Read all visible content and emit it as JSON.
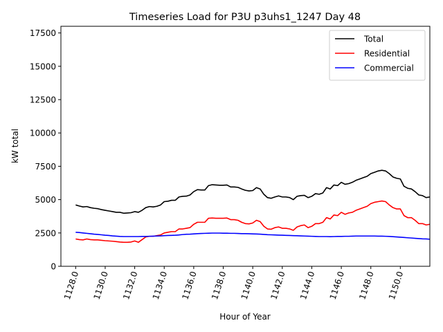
{
  "chart_data": {
    "type": "line",
    "title": "Timeseries Load for P3U p3uhs1_1247  Day 48",
    "xlabel": "Hour of Year",
    "ylabel": "kW total",
    "xlim": [
      1127.0,
      1152.0
    ],
    "ylim": [
      0,
      18000
    ],
    "xticks": [
      1128.0,
      1130.0,
      1132.0,
      1134.0,
      1136.0,
      1138.0,
      1140.0,
      1142.0,
      1144.0,
      1146.0,
      1148.0,
      1150.0
    ],
    "xtick_labels": [
      "1128.0",
      "1130.0",
      "1132.0",
      "1134.0",
      "1136.0",
      "1138.0",
      "1140.0",
      "1142.0",
      "1144.0",
      "1146.0",
      "1148.0",
      "1150.0"
    ],
    "yticks": [
      0,
      2500,
      5000,
      7500,
      10000,
      12500,
      15000,
      17500
    ],
    "ytick_labels": [
      "0",
      "2500",
      "5000",
      "7500",
      "10000",
      "12500",
      "15000",
      "17500"
    ],
    "grid": false,
    "legend_position": "top-right",
    "x_start": 1128.0,
    "x_step": 0.25,
    "series": [
      {
        "name": "Total",
        "color": "#000000",
        "values": [
          4600,
          4520,
          4450,
          4480,
          4400,
          4350,
          4320,
          4250,
          4200,
          4150,
          4100,
          4050,
          4050,
          3980,
          4000,
          4020,
          4100,
          4050,
          4200,
          4400,
          4480,
          4450,
          4500,
          4600,
          4850,
          4880,
          4950,
          4950,
          5200,
          5250,
          5260,
          5350,
          5600,
          5750,
          5720,
          5720,
          6050,
          6120,
          6100,
          6080,
          6080,
          6100,
          5950,
          5950,
          5920,
          5800,
          5700,
          5650,
          5680,
          5900,
          5800,
          5400,
          5150,
          5100,
          5200,
          5280,
          5200,
          5200,
          5150,
          5000,
          5250,
          5300,
          5320,
          5150,
          5250,
          5450,
          5400,
          5500,
          5900,
          5800,
          6100,
          6050,
          6300,
          6150,
          6200,
          6300,
          6450,
          6550,
          6650,
          6750,
          6950,
          7050,
          7150,
          7200,
          7150,
          6950,
          6700,
          6600,
          6550,
          6000,
          5850,
          5800,
          5600,
          5350,
          5300,
          5150,
          5200
        ]
      },
      {
        "name": "Residential",
        "color": "#ff0000",
        "values": [
          2050,
          2000,
          1980,
          2050,
          2000,
          1980,
          1980,
          1950,
          1920,
          1900,
          1880,
          1850,
          1820,
          1800,
          1800,
          1820,
          1900,
          1800,
          2000,
          2200,
          2250,
          2250,
          2300,
          2350,
          2500,
          2550,
          2600,
          2600,
          2800,
          2800,
          2850,
          2900,
          3150,
          3300,
          3300,
          3300,
          3600,
          3620,
          3600,
          3600,
          3600,
          3620,
          3500,
          3500,
          3450,
          3300,
          3200,
          3180,
          3250,
          3450,
          3350,
          3000,
          2800,
          2780,
          2900,
          2950,
          2850,
          2850,
          2800,
          2700,
          2950,
          3050,
          3100,
          2900,
          3000,
          3200,
          3200,
          3300,
          3650,
          3550,
          3850,
          3800,
          4050,
          3900,
          4000,
          4050,
          4200,
          4300,
          4400,
          4500,
          4700,
          4800,
          4850,
          4900,
          4850,
          4600,
          4400,
          4300,
          4300,
          3800,
          3650,
          3650,
          3450,
          3200,
          3200,
          3100,
          3150
        ]
      },
      {
        "name": "Commercial",
        "color": "#0000ff",
        "values": [
          2550,
          2530,
          2500,
          2470,
          2440,
          2410,
          2390,
          2360,
          2330,
          2310,
          2280,
          2260,
          2240,
          2230,
          2230,
          2230,
          2230,
          2230,
          2240,
          2240,
          2250,
          2260,
          2270,
          2280,
          2300,
          2310,
          2320,
          2330,
          2350,
          2380,
          2400,
          2410,
          2430,
          2450,
          2460,
          2470,
          2480,
          2490,
          2490,
          2490,
          2480,
          2480,
          2470,
          2470,
          2460,
          2450,
          2450,
          2440,
          2430,
          2420,
          2410,
          2390,
          2370,
          2360,
          2350,
          2340,
          2330,
          2320,
          2310,
          2300,
          2290,
          2280,
          2270,
          2260,
          2250,
          2240,
          2230,
          2230,
          2230,
          2220,
          2230,
          2240,
          2240,
          2250,
          2250,
          2260,
          2270,
          2270,
          2270,
          2270,
          2270,
          2270,
          2260,
          2260,
          2250,
          2240,
          2220,
          2200,
          2180,
          2160,
          2140,
          2120,
          2100,
          2080,
          2060,
          2050,
          2030
        ]
      }
    ]
  }
}
